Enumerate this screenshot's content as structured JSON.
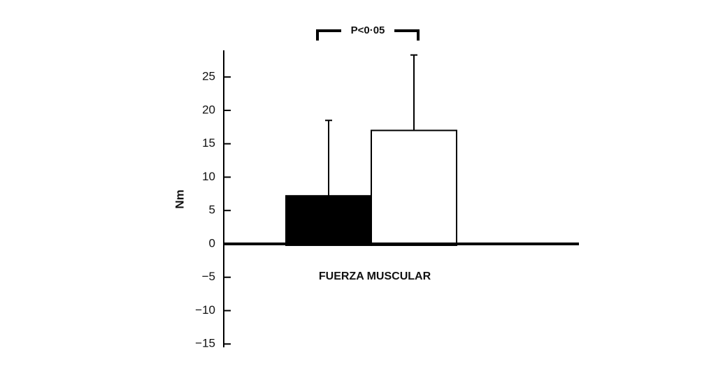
{
  "chart_data": {
    "type": "bar",
    "annotation": "P<0·05",
    "xlabel": "FUERZA MUSCULAR",
    "ylabel": "Nm",
    "categories": [
      null,
      null
    ],
    "values": [
      7.2,
      17
    ],
    "errors": [
      11.3,
      11.3
    ],
    "colors": [
      "#000000",
      "#ffffff"
    ],
    "ylim": [
      -15.5,
      29
    ],
    "yticks": [
      {
        "value": -15,
        "label": "−15"
      },
      {
        "value": -10,
        "label": "−10"
      },
      {
        "value": -5,
        "label": "−5"
      },
      0,
      5,
      10,
      15,
      20,
      25
    ],
    "grid": false
  }
}
